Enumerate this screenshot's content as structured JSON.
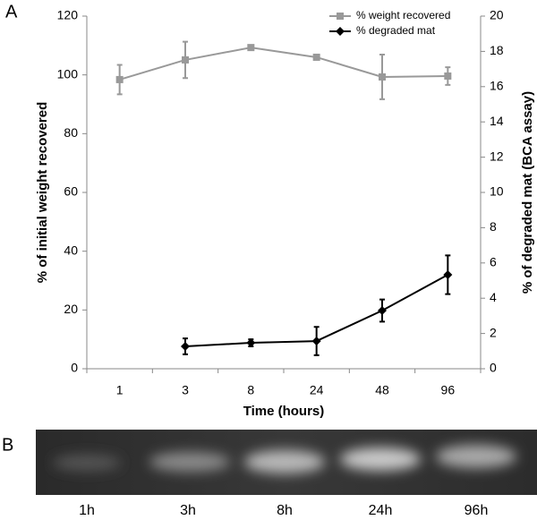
{
  "chart_data": {
    "type": "line",
    "panel_label": "A",
    "x_label": "Time (hours)",
    "y_label": "% of initial weight recovered",
    "y2_label": "% of degraded mat (BCA assay)",
    "categories": [
      "1",
      "3",
      "8",
      "24",
      "48",
      "96"
    ],
    "ylim": [
      0,
      120
    ],
    "yticks": [
      0,
      20,
      40,
      60,
      80,
      100,
      120
    ],
    "y2lim": [
      0,
      20
    ],
    "y2ticks": [
      0,
      2,
      4,
      6,
      8,
      10,
      12,
      14,
      16,
      18,
      20
    ],
    "legend": "upper right",
    "series": [
      {
        "name": "% weight recovered",
        "color": "#999999",
        "marker": "square",
        "values": [
          98.4,
          105.1,
          109.3,
          106,
          99.3,
          99.6
        ],
        "errors": [
          5,
          6.2,
          0.6,
          0.6,
          7.6,
          3
        ]
      },
      {
        "name": "% degraded mat",
        "color": "#000000",
        "marker": "diamond",
        "axis": "y2",
        "values": [
          null,
          1.27,
          1.47,
          1.57,
          3.3,
          5.33
        ],
        "errors": [
          null,
          0.45,
          0.2,
          0.8,
          0.63,
          1.1
        ]
      }
    ]
  },
  "gel": {
    "panel_label": "B",
    "lanes": [
      "1h",
      "3h",
      "8h",
      "24h",
      "96h"
    ]
  }
}
